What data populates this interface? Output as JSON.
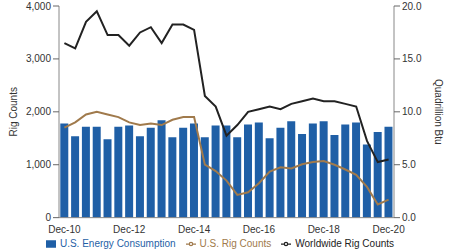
{
  "chart_data": {
    "type": "bar",
    "categories": [
      "Dec-10",
      null,
      null,
      null,
      null,
      null,
      "Dec-12",
      null,
      null,
      null,
      null,
      null,
      "Dec-14",
      null,
      null,
      null,
      null,
      null,
      "Dec-16",
      null,
      null,
      null,
      null,
      null,
      "Dec-18",
      null,
      null,
      null,
      null,
      null,
      "Dec-20"
    ],
    "y_label": "Rig Counts",
    "y2_label": "Quadrillion Btu",
    "ylim": [
      0,
      4000
    ],
    "yticks": [
      0,
      {
        "value": 1000,
        "label": "1,000"
      },
      {
        "value": 2000,
        "label": "2,000"
      },
      {
        "value": 3000,
        "label": "3,000"
      },
      {
        "value": 4000,
        "label": "4,000"
      }
    ],
    "y2lim": [
      0,
      20
    ],
    "y2ticks": [
      {
        "value": 0,
        "label": "0.0"
      },
      {
        "value": 5,
        "label": "5.0"
      },
      {
        "value": 10,
        "label": "10.0"
      },
      {
        "value": 15,
        "label": "15.0"
      },
      {
        "value": 20,
        "label": "20.0"
      }
    ],
    "grid": false,
    "legend": "bottom",
    "series": [
      {
        "name": "U.S. Energy Consumption",
        "type": "bar",
        "axis": "y2",
        "color": "#1f5fa6",
        "values": [
          8.9,
          7.7,
          8.6,
          8.6,
          7.4,
          8.6,
          8.7,
          7.7,
          8.5,
          9.2,
          7.6,
          8.5,
          8.9,
          7.6,
          8.7,
          8.7,
          7.6,
          8.8,
          9.0,
          7.5,
          8.5,
          9.1,
          7.9,
          8.9,
          9.1,
          7.8,
          8.8,
          9.0,
          6.9,
          8.1,
          8.6
        ]
      },
      {
        "name": "U.S. Rig Counts",
        "type": "line",
        "color": "#a07a4c",
        "values": [
          1700,
          1800,
          1950,
          2000,
          1950,
          1900,
          1800,
          1750,
          1780,
          1750,
          1850,
          1900,
          1900,
          1000,
          880,
          700,
          430,
          480,
          650,
          870,
          950,
          930,
          1010,
          1050,
          1070,
          1000,
          910,
          810,
          580,
          250,
          340
        ]
      },
      {
        "name": "Worldwide Rig Counts",
        "type": "line",
        "color": "#222222",
        "values": [
          3300,
          3200,
          3700,
          3900,
          3450,
          3450,
          3250,
          3500,
          3600,
          3300,
          3650,
          3650,
          3550,
          2300,
          2100,
          1550,
          1750,
          2000,
          2050,
          2100,
          2050,
          2150,
          2200,
          2250,
          2200,
          2200,
          2150,
          2100,
          1450,
          1050,
          1100
        ]
      }
    ]
  }
}
